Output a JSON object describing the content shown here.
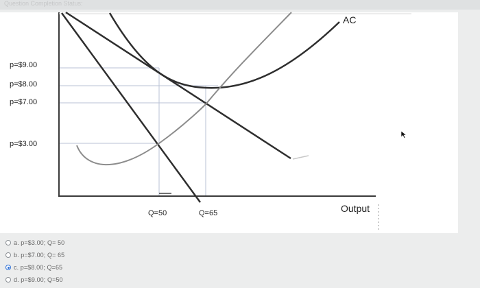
{
  "header": {
    "text": "Question Completion Status:"
  },
  "diagram": {
    "price_labels": [
      "p=$9.00",
      "p=$8.00",
      "p=$7.00",
      "p=$3.00"
    ],
    "quantity_labels": [
      "Q=50",
      "Q=65"
    ],
    "curve_label": "AC",
    "axis_label": "Output"
  },
  "question": {
    "options": [
      {
        "label": "a. p=$3.00; Q= 50",
        "selected": false
      },
      {
        "label": "b. p=$7.00; Q= 65",
        "selected": false
      },
      {
        "label": "c. p=$8.00; Q=65",
        "selected": true
      },
      {
        "label": "d. p=$9.00; Q=50",
        "selected": false
      }
    ]
  },
  "colors": {
    "axis": "#3a3a3a",
    "curve": "#2e2e2e",
    "gray_curve": "#8c8c8c",
    "guide": "#b9c2d4",
    "accent": "#2d6fd6"
  }
}
